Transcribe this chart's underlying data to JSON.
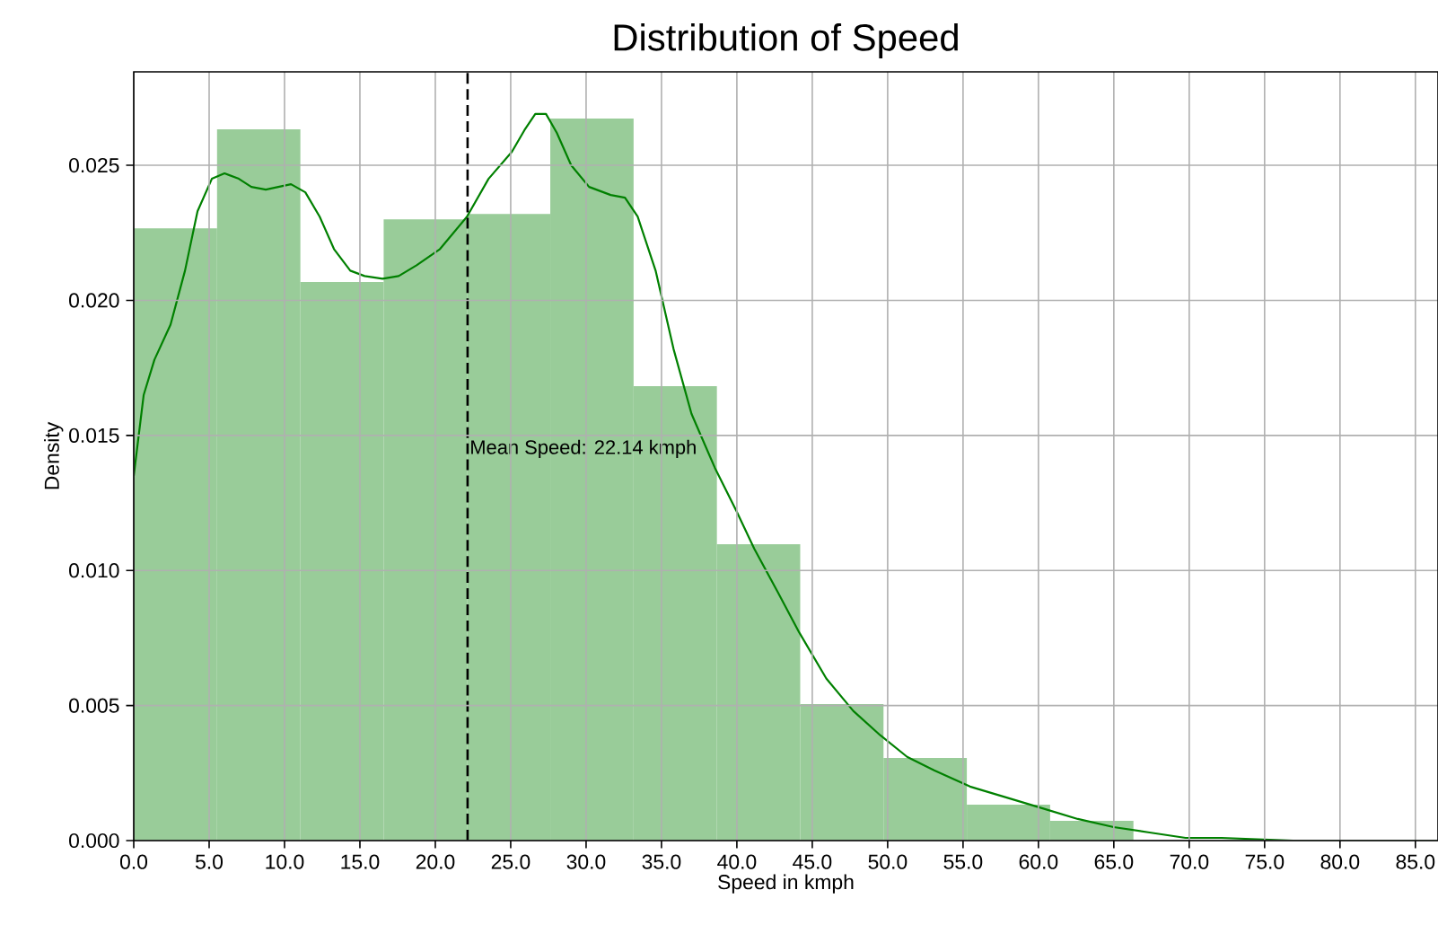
{
  "chart_data": {
    "type": "histogram",
    "title": "Distribution of Speed",
    "xlabel": "Speed in kmph",
    "ylabel": "Density",
    "series": [
      {
        "type": "histogram",
        "color": "#99cc99",
        "bins": [
          0,
          5.525,
          11.05,
          16.575,
          22.1,
          27.625,
          33.15,
          38.675,
          44.2,
          49.725,
          55.25,
          60.775,
          66.3
        ],
        "values": [
          0.02267,
          0.02633,
          0.02068,
          0.023,
          0.0232,
          0.02673,
          0.01682,
          0.01097,
          0.00505,
          0.00306,
          0.00133,
          0.00073
        ]
      },
      {
        "type": "line",
        "color": "#008000",
        "x": [
          0,
          0.66,
          1.37,
          2.44,
          3.4,
          4.23,
          5.18,
          6.02,
          6.97,
          7.8,
          8.76,
          9.59,
          10.43,
          11.38,
          12.33,
          13.28,
          14.36,
          15.31,
          16.5,
          17.57,
          18.76,
          20.31,
          22.1,
          23.53,
          25.08,
          25.91,
          26.63,
          27.34,
          28.06,
          29.01,
          30.2,
          31.63,
          32.58,
          33.42,
          34.61,
          35.8,
          36.99,
          38.54,
          39.97,
          41.16,
          42.71,
          44.14,
          45.93,
          47.72,
          49.51,
          51.29,
          53.08,
          55.46,
          57.85,
          60.23,
          62.61,
          64.99,
          67.37,
          69.76,
          72.14,
          76.9,
          86.5
        ],
        "values": [
          0.0135,
          0.0165,
          0.0178,
          0.0191,
          0.0211,
          0.0233,
          0.0245,
          0.0247,
          0.0245,
          0.0242,
          0.0241,
          0.0242,
          0.0243,
          0.024,
          0.0231,
          0.0219,
          0.0211,
          0.0209,
          0.0208,
          0.0209,
          0.0213,
          0.0219,
          0.0231,
          0.0245,
          0.0255,
          0.0263,
          0.0269,
          0.0269,
          0.0262,
          0.025,
          0.0242,
          0.0239,
          0.0238,
          0.0231,
          0.0211,
          0.0182,
          0.0158,
          0.0138,
          0.0122,
          0.0108,
          0.0092,
          0.0077,
          0.006,
          0.0048,
          0.0039,
          0.0031,
          0.0026,
          0.002,
          0.0016,
          0.0012,
          0.0008,
          0.0005,
          0.0003,
          0.0001,
          0.0001,
          0,
          0
        ]
      }
    ],
    "ref_lines": [
      {
        "axis": "x",
        "value": 22.14,
        "label": "Mean Speed: 22.14 kmph",
        "color": "#000000",
        "line_style": "dashed"
      }
    ],
    "xlim": [
      0,
      86.5
    ],
    "ylim": [
      0,
      0.02846
    ],
    "xticks": [
      {
        "value": 0,
        "label": "0.0"
      },
      {
        "value": 5,
        "label": "5.0"
      },
      {
        "value": 10,
        "label": "10.0"
      },
      {
        "value": 15,
        "label": "15.0"
      },
      {
        "value": 20,
        "label": "20.0"
      },
      {
        "value": 25,
        "label": "25.0"
      },
      {
        "value": 30,
        "label": "30.0"
      },
      {
        "value": 35,
        "label": "35.0"
      },
      {
        "value": 40,
        "label": "40.0"
      },
      {
        "value": 45,
        "label": "45.0"
      },
      {
        "value": 50,
        "label": "50.0"
      },
      {
        "value": 55,
        "label": "55.0"
      },
      {
        "value": 60,
        "label": "60.0"
      },
      {
        "value": 65,
        "label": "65.0"
      },
      {
        "value": 70,
        "label": "70.0"
      },
      {
        "value": 75,
        "label": "75.0"
      },
      {
        "value": 80,
        "label": "80.0"
      },
      {
        "value": 85,
        "label": "85.0"
      }
    ],
    "yticks": [
      {
        "value": 0,
        "label": "0.000"
      },
      {
        "value": 0.005,
        "label": "0.005"
      },
      {
        "value": 0.01,
        "label": "0.010"
      },
      {
        "value": 0.015,
        "label": "0.015"
      },
      {
        "value": 0.02,
        "label": "0.020"
      },
      {
        "value": 0.025,
        "label": "0.025"
      }
    ],
    "grid": true
  }
}
